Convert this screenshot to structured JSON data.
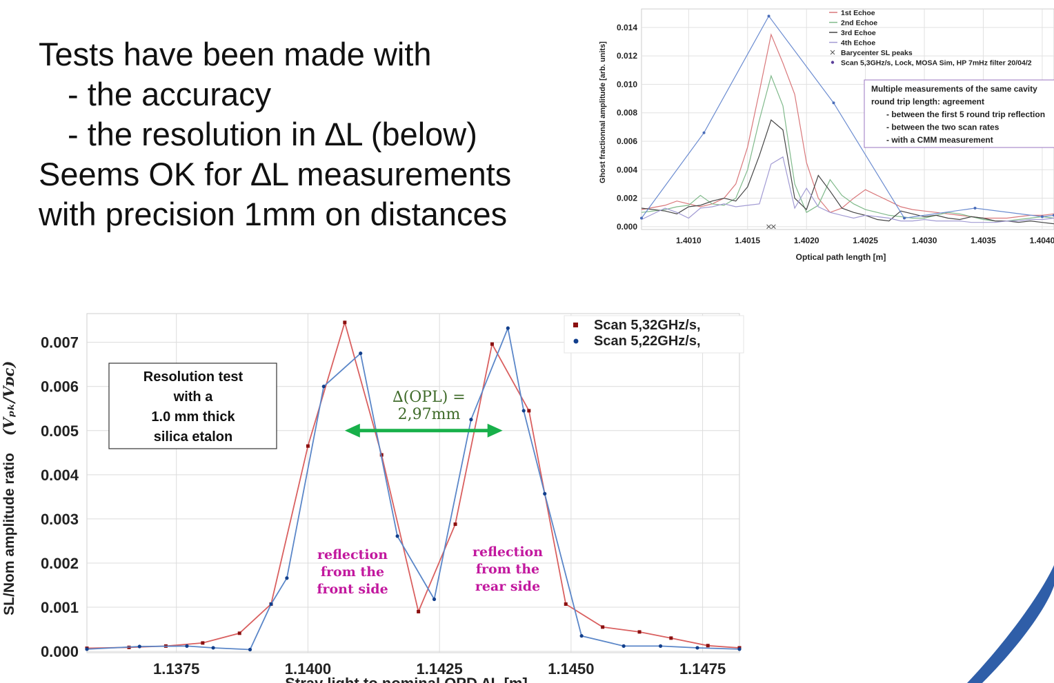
{
  "slide": {
    "lines": [
      "Tests have been made with",
      "- the accuracy",
      "- the resolution in ∆L (below)",
      "Seems OK for ∆L measurements",
      "with precision 1mm on distances"
    ]
  },
  "chart_data": [
    {
      "type": "line",
      "xlabel": "Optical path length [m]",
      "ylabel": "Ghost fractionnal amplitude [arb. units]",
      "xlim": [
        1.4006,
        1.4041
      ],
      "ylim": [
        -0.0002,
        0.0153
      ],
      "x_ticks": [
        1.401,
        1.4015,
        1.402,
        1.4025,
        1.403,
        1.4035,
        1.404
      ],
      "x_tick_labels": [
        "1.4010",
        "1.4015",
        "1.4020",
        "1.4025",
        "1.4030",
        "1.4035",
        "1.4040"
      ],
      "y_ticks": [
        0.0,
        0.002,
        0.004,
        0.006,
        0.008,
        0.01,
        0.012,
        0.014
      ],
      "y_tick_labels": [
        "0.000",
        "0.002",
        "0.004",
        "0.006",
        "0.008",
        "0.010",
        "0.012",
        "0.014"
      ],
      "grid": true,
      "legend_position": "top-right",
      "series": [
        {
          "name": "1st Echoe",
          "color": "#d9777a",
          "marker": "none",
          "x": [
            1.4006,
            1.4008,
            1.4009,
            1.401,
            1.4011,
            1.4012,
            1.4013,
            1.4014,
            1.4015,
            1.4016,
            1.4017,
            1.4018,
            1.4019,
            1.402,
            1.4021,
            1.4022,
            1.4023,
            1.4024,
            1.4025,
            1.4026,
            1.4027,
            1.4028,
            1.4029,
            1.403,
            1.4031,
            1.4032,
            1.4033,
            1.4034,
            1.4035,
            1.4036,
            1.4037,
            1.4038,
            1.4039,
            1.404,
            1.4041
          ],
          "y": [
            0.0012,
            0.0015,
            0.0018,
            0.0016,
            0.0014,
            0.0016,
            0.002,
            0.003,
            0.0056,
            0.0095,
            0.0135,
            0.0115,
            0.0093,
            0.0045,
            0.002,
            0.001,
            0.0013,
            0.002,
            0.0026,
            0.0022,
            0.0018,
            0.0014,
            0.0012,
            0.0011,
            0.001,
            0.0009,
            0.0008,
            0.0007,
            0.0006,
            0.0006,
            0.0006,
            0.0007,
            0.0008,
            0.0008,
            0.0009
          ]
        },
        {
          "name": "2nd Echoe",
          "color": "#7fb98a",
          "marker": "none",
          "x": [
            1.4006,
            1.4008,
            1.4009,
            1.401,
            1.4011,
            1.4012,
            1.4013,
            1.4014,
            1.4015,
            1.4016,
            1.4017,
            1.4018,
            1.4019,
            1.402,
            1.4021,
            1.4022,
            1.4023,
            1.4024,
            1.4025,
            1.4026,
            1.4027,
            1.4028,
            1.4029,
            1.403,
            1.4031,
            1.4032,
            1.4033,
            1.4034,
            1.4035,
            1.4036,
            1.4037,
            1.4038,
            1.4039,
            1.404,
            1.4041
          ],
          "y": [
            0.001,
            0.0012,
            0.0014,
            0.0015,
            0.0022,
            0.0016,
            0.0015,
            0.002,
            0.004,
            0.0075,
            0.0106,
            0.0085,
            0.003,
            0.001,
            0.0015,
            0.0033,
            0.0022,
            0.0016,
            0.0012,
            0.001,
            0.0008,
            0.0007,
            0.0006,
            0.0006,
            0.0008,
            0.001,
            0.0009,
            0.0007,
            0.0005,
            0.0004,
            0.0004,
            0.0005,
            0.0006,
            0.0007,
            0.0006
          ]
        },
        {
          "name": "3rd Echoe",
          "color": "#444444",
          "marker": "none",
          "x": [
            1.4006,
            1.4008,
            1.4009,
            1.401,
            1.4011,
            1.4012,
            1.4013,
            1.4014,
            1.4015,
            1.4016,
            1.4017,
            1.4018,
            1.4019,
            1.402,
            1.4021,
            1.4022,
            1.4023,
            1.4024,
            1.4025,
            1.4026,
            1.4027,
            1.4028,
            1.4029,
            1.403,
            1.4031,
            1.4032,
            1.4033,
            1.4034,
            1.4035,
            1.4036,
            1.4037,
            1.4038,
            1.4039,
            1.404,
            1.4041
          ],
          "y": [
            0.0013,
            0.0011,
            0.0009,
            0.0014,
            0.0015,
            0.0018,
            0.002,
            0.0018,
            0.0028,
            0.005,
            0.0075,
            0.0068,
            0.002,
            0.0012,
            0.0036,
            0.0025,
            0.0013,
            0.001,
            0.0008,
            0.0005,
            0.0004,
            0.0011,
            0.0009,
            0.0007,
            0.0008,
            0.0006,
            0.0005,
            0.0007,
            0.0006,
            0.0004,
            0.0004,
            0.0003,
            0.0004,
            0.0003,
            0.0002
          ]
        },
        {
          "name": "4th Echoe",
          "color": "#a19ad3",
          "marker": "none",
          "x": [
            1.4006,
            1.4008,
            1.4009,
            1.401,
            1.4011,
            1.4012,
            1.4013,
            1.4014,
            1.4015,
            1.4016,
            1.4017,
            1.4018,
            1.4019,
            1.402,
            1.4021,
            1.4022,
            1.4023,
            1.4024,
            1.4025,
            1.4026,
            1.4027,
            1.4028,
            1.4029,
            1.403,
            1.4031,
            1.4032,
            1.4033,
            1.4034,
            1.4035,
            1.4036,
            1.4037,
            1.4038,
            1.4039,
            1.404,
            1.4041
          ],
          "y": [
            0.0005,
            0.0013,
            0.001,
            0.0006,
            0.0013,
            0.0014,
            0.0016,
            0.0014,
            0.0015,
            0.0016,
            0.0044,
            0.0049,
            0.0013,
            0.0027,
            0.0014,
            0.001,
            0.0008,
            0.0006,
            0.0008,
            0.0007,
            0.0006,
            0.0004,
            0.0004,
            0.0005,
            0.0004,
            0.0004,
            0.0004,
            0.0003,
            0.0003,
            0.0003,
            0.0004,
            0.0004,
            0.0005,
            0.0005,
            0.0006
          ]
        },
        {
          "name": "Barycenter SL peaks",
          "color": "#555555",
          "marker": "x",
          "x": [
            1.40168,
            1.40172
          ],
          "y": [
            0.0,
            0.0
          ]
        },
        {
          "name": "Scan 5,3GHz/s, Lock, MOSA Sim, HP 7mHz filter 20/04/2",
          "color": "#6a8bd0",
          "marker": "dot",
          "x": [
            1.4006,
            1.40113,
            1.40168,
            1.40223,
            1.40283,
            1.40343,
            1.404,
            1.4041
          ],
          "y": [
            0.0006,
            0.0066,
            0.0148,
            0.0087,
            0.0006,
            0.0013,
            0.0007,
            0.0008
          ]
        }
      ],
      "annotation": {
        "lines": [
          "Multiple measurements of the same cavity",
          "round trip length: agreement",
          "- between the first 5 round trip reflection",
          "- between the two scan rates",
          "- with a CMM measurement"
        ]
      }
    },
    {
      "type": "line",
      "xlabel": "Stray light to nominal OPD ∆L [m]",
      "ylabel": "SL/Nom amplitude ratio",
      "ylabel_formula": "(Vₚₖ/Vᴅᴄ)",
      "xlim": [
        1.1358,
        1.1482
      ],
      "ylim": [
        -3e-05,
        0.00765
      ],
      "x_ticks": [
        1.1375,
        1.14,
        1.1425,
        1.145,
        1.1475
      ],
      "x_tick_labels": [
        "1.1375",
        "1.1400",
        "1.1425",
        "1.1450",
        "1.1475"
      ],
      "y_ticks": [
        0.0,
        0.001,
        0.002,
        0.003,
        0.004,
        0.005,
        0.006,
        0.007
      ],
      "y_tick_labels": [
        "0.000",
        "0.001",
        "0.002",
        "0.003",
        "0.004",
        "0.005",
        "0.006",
        "0.007"
      ],
      "grid": true,
      "legend_position": "top-right",
      "series": [
        {
          "name": "Scan 5,32GHz/s,",
          "color": "#d95f5f",
          "marker": "square",
          "marker_color": "#8b1010",
          "x": [
            1.1358,
            1.1366,
            1.1373,
            1.138,
            1.1387,
            1.1393,
            1.14,
            1.1407,
            1.1414,
            1.1421,
            1.1428,
            1.1435,
            1.1442,
            1.1449,
            1.1456,
            1.1463,
            1.1469,
            1.1476,
            1.1482
          ],
          "y": [
            7e-05,
            9e-05,
            0.00012,
            0.00019,
            0.00041,
            0.00107,
            0.00465,
            0.00745,
            0.00445,
            0.0009,
            0.00288,
            0.00696,
            0.00545,
            0.00107,
            0.00055,
            0.00044,
            0.0003,
            0.00013,
            8e-05
          ]
        },
        {
          "name": "Scan 5,22GHz/s,",
          "color": "#5a86c8",
          "marker": "dot",
          "marker_color": "#123f8c",
          "x": [
            1.1358,
            1.1368,
            1.1377,
            1.1382,
            1.1389,
            1.1393,
            1.1396,
            1.1403,
            1.141,
            1.1417,
            1.1424,
            1.1431,
            1.1438,
            1.1441,
            1.1445,
            1.1452,
            1.146,
            1.1467,
            1.1474,
            1.1482
          ],
          "y": [
            5e-05,
            0.00011,
            0.00012,
            8e-05,
            4e-05,
            0.00107,
            0.00166,
            0.006,
            0.00675,
            0.00261,
            0.00118,
            0.00525,
            0.00732,
            0.00545,
            0.00357,
            0.00035,
            0.00012,
            0.00012,
            8e-05,
            5e-05
          ]
        }
      ],
      "box_label": [
        "Resolution test",
        "with a",
        "1.0 mm thick",
        "silica etalon"
      ],
      "delta_label": [
        "∆(OPL) =",
        "2,97mm"
      ],
      "delta_arrow_range": [
        1.1407,
        1.1437
      ],
      "delta_arrow_y": 0.005,
      "annotation_front": [
        "reflection",
        "from the",
        "front side"
      ],
      "annotation_rear": [
        "reflection",
        "from the",
        "rear side"
      ],
      "colors": {
        "arrow": "#18b04a",
        "annotation": "#c2189e",
        "delta_text": "#3f6b2a"
      }
    }
  ]
}
